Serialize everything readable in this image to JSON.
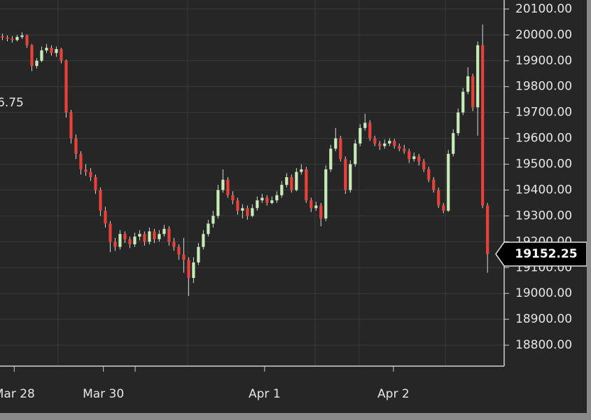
{
  "chart_data": {
    "type": "candlestick",
    "up_color": "#c8ecb8",
    "down_color": "#e8413a",
    "wick_color": "#d8d8d8",
    "grid": true,
    "annotation": "6.75",
    "ylim": [
      18719,
      20135
    ],
    "yticks": [
      {
        "value": 18800,
        "label": "18800.00"
      },
      {
        "value": 18900,
        "label": "18900.00"
      },
      {
        "value": 19000,
        "label": "19000.00"
      },
      {
        "value": 19100,
        "label": "19100.00"
      },
      {
        "value": 19200,
        "label": "19200.00"
      },
      {
        "value": 19300,
        "label": "19300.00"
      },
      {
        "value": 19400,
        "label": "19400.00"
      },
      {
        "value": 19500,
        "label": "19500.00"
      },
      {
        "value": 19600,
        "label": "19600.00"
      },
      {
        "value": 19700,
        "label": "19700.00"
      },
      {
        "value": 19800,
        "label": "19800.00"
      },
      {
        "value": 19900,
        "label": "19900.00"
      },
      {
        "value": 20000,
        "label": "20000.00"
      },
      {
        "value": 20100,
        "label": "20100.00"
      }
    ],
    "xlim": [
      -0.5,
      102.4
    ],
    "xticks": [
      {
        "value": 2.4,
        "label": "Mar 28"
      },
      {
        "value": 20.6,
        "label": "Mar 30"
      },
      {
        "value": 53.5,
        "label": "Apr 1"
      },
      {
        "value": 79.8,
        "label": "Apr 2"
      }
    ],
    "ohlc": [
      [
        19995,
        20005,
        19980,
        19990
      ],
      [
        19990,
        19998,
        19975,
        19985
      ],
      [
        19985,
        19995,
        19970,
        19980
      ],
      [
        19980,
        20000,
        19975,
        19992
      ],
      [
        19992,
        20010,
        19985,
        19998
      ],
      [
        19998,
        20002,
        19950,
        19960
      ],
      [
        19960,
        19965,
        19860,
        19880
      ],
      [
        19880,
        19910,
        19870,
        19900
      ],
      [
        19900,
        19955,
        19895,
        19940
      ],
      [
        19940,
        19965,
        19930,
        19950
      ],
      [
        19950,
        19960,
        19920,
        19930
      ],
      [
        19930,
        19955,
        19915,
        19945
      ],
      [
        19945,
        19950,
        19890,
        19900
      ],
      [
        19900,
        19905,
        19680,
        19700
      ],
      [
        19700,
        19710,
        19580,
        19600
      ],
      [
        19600,
        19615,
        19520,
        19540
      ],
      [
        19540,
        19550,
        19460,
        19480
      ],
      [
        19480,
        19500,
        19455,
        19470
      ],
      [
        19470,
        19485,
        19435,
        19450
      ],
      [
        19450,
        19460,
        19385,
        19400
      ],
      [
        19400,
        19410,
        19300,
        19320
      ],
      [
        19320,
        19335,
        19255,
        19270
      ],
      [
        19270,
        19280,
        19160,
        19200
      ],
      [
        19200,
        19215,
        19165,
        19180
      ],
      [
        19180,
        19245,
        19170,
        19230
      ],
      [
        19230,
        19240,
        19195,
        19210
      ],
      [
        19210,
        19220,
        19175,
        19190
      ],
      [
        19190,
        19235,
        19180,
        19220
      ],
      [
        19220,
        19245,
        19205,
        19230
      ],
      [
        19230,
        19240,
        19185,
        19200
      ],
      [
        19200,
        19255,
        19190,
        19240
      ],
      [
        19240,
        19250,
        19195,
        19210
      ],
      [
        19210,
        19245,
        19200,
        19230
      ],
      [
        19230,
        19265,
        19220,
        19250
      ],
      [
        19250,
        19260,
        19185,
        19200
      ],
      [
        19200,
        19215,
        19165,
        19180
      ],
      [
        19180,
        19190,
        19130,
        19150
      ],
      [
        19150,
        19215,
        19080,
        19130
      ],
      [
        19130,
        19140,
        18990,
        19060
      ],
      [
        19060,
        19140,
        19040,
        19120
      ],
      [
        19120,
        19195,
        19110,
        19180
      ],
      [
        19180,
        19245,
        19170,
        19230
      ],
      [
        19230,
        19285,
        19220,
        19270
      ],
      [
        19270,
        19320,
        19255,
        19300
      ],
      [
        19300,
        19420,
        19290,
        19400
      ],
      [
        19400,
        19480,
        19390,
        19440
      ],
      [
        19440,
        19450,
        19370,
        19380
      ],
      [
        19380,
        19395,
        19345,
        19360
      ],
      [
        19360,
        19370,
        19305,
        19320
      ],
      [
        19320,
        19345,
        19290,
        19330
      ],
      [
        19330,
        19340,
        19285,
        19300
      ],
      [
        19300,
        19345,
        19295,
        19330
      ],
      [
        19330,
        19375,
        19320,
        19360
      ],
      [
        19360,
        19385,
        19350,
        19370
      ],
      [
        19370,
        19380,
        19340,
        19350
      ],
      [
        19350,
        19375,
        19345,
        19360
      ],
      [
        19360,
        19395,
        19350,
        19380
      ],
      [
        19380,
        19435,
        19370,
        19420
      ],
      [
        19420,
        19465,
        19410,
        19450
      ],
      [
        19450,
        19460,
        19390,
        19400
      ],
      [
        19400,
        19485,
        19395,
        19470
      ],
      [
        19470,
        19500,
        19460,
        19480
      ],
      [
        19480,
        19490,
        19350,
        19360
      ],
      [
        19360,
        19370,
        19315,
        19330
      ],
      [
        19330,
        19355,
        19320,
        19340
      ],
      [
        19340,
        19350,
        19260,
        19290
      ],
      [
        19290,
        19495,
        19280,
        19480
      ],
      [
        19480,
        19575,
        19470,
        19560
      ],
      [
        19560,
        19640,
        19550,
        19600
      ],
      [
        19600,
        19610,
        19510,
        19520
      ],
      [
        19520,
        19530,
        19385,
        19400
      ],
      [
        19400,
        19515,
        19390,
        19500
      ],
      [
        19500,
        19595,
        19490,
        19580
      ],
      [
        19580,
        19655,
        19570,
        19640
      ],
      [
        19640,
        19695,
        19630,
        19660
      ],
      [
        19660,
        19670,
        19590,
        19600
      ],
      [
        19600,
        19610,
        19570,
        19580
      ],
      [
        19580,
        19590,
        19555,
        19570
      ],
      [
        19570,
        19595,
        19560,
        19580
      ],
      [
        19580,
        19600,
        19570,
        19590
      ],
      [
        19590,
        19598,
        19560,
        19570
      ],
      [
        19570,
        19580,
        19550,
        19560
      ],
      [
        19560,
        19575,
        19540,
        19550
      ],
      [
        19550,
        19560,
        19505,
        19520
      ],
      [
        19520,
        19545,
        19510,
        19530
      ],
      [
        19530,
        19540,
        19495,
        19510
      ],
      [
        19510,
        19520,
        19470,
        19480
      ],
      [
        19480,
        19490,
        19430,
        19440
      ],
      [
        19440,
        19450,
        19390,
        19400
      ],
      [
        19400,
        19410,
        19330,
        19340
      ],
      [
        19340,
        19350,
        19310,
        19320
      ],
      [
        19320,
        19555,
        19315,
        19540
      ],
      [
        19540,
        19635,
        19530,
        19620
      ],
      [
        19620,
        19715,
        19610,
        19700
      ],
      [
        19700,
        19795,
        19690,
        19780
      ],
      [
        19780,
        19875,
        19770,
        19840
      ],
      [
        19840,
        19850,
        19705,
        19720
      ],
      [
        19720,
        19975,
        19610,
        19960
      ],
      [
        19960,
        20040,
        19330,
        19340
      ],
      [
        19340,
        19350,
        19080,
        19152.25
      ]
    ]
  }
}
